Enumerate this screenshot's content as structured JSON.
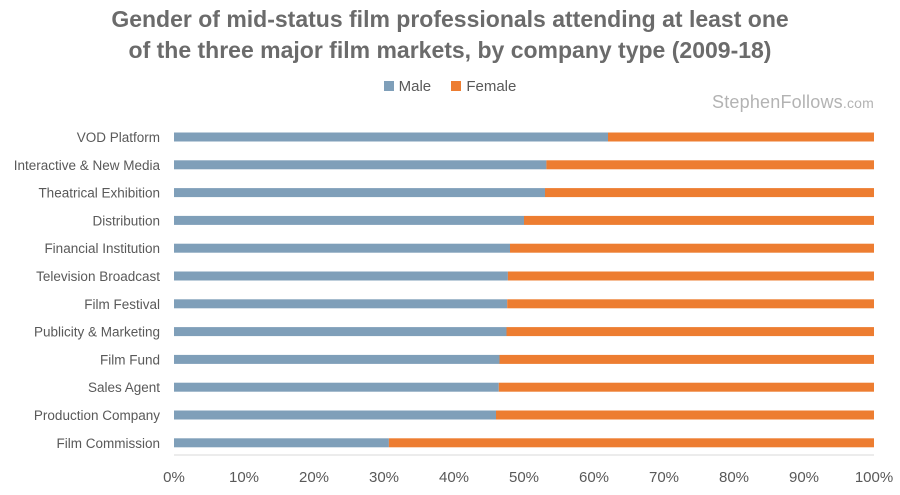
{
  "chart_data": {
    "type": "bar",
    "orientation": "horizontal",
    "stacked": true,
    "title_lines": [
      "Gender of mid-status film professionals attending at least one",
      "of the three major film markets, by company type (2009-18)"
    ],
    "categories": [
      "VOD Platform",
      "Interactive & New Media",
      "Theatrical Exhibition",
      "Distribution",
      "Financial Institution",
      "Television Broadcast",
      "Film Festival",
      "Publicity & Marketing",
      "Film Fund",
      "Sales Agent",
      "Production Company",
      "Film Commission"
    ],
    "series": [
      {
        "name": "Male",
        "color": "#7f9fb9",
        "values": [
          62,
          53.2,
          53,
          50,
          48,
          47.7,
          47.6,
          47.5,
          46.5,
          46.4,
          46,
          30.7
        ]
      },
      {
        "name": "Female",
        "color": "#ed7d31",
        "values": [
          38,
          46.8,
          47,
          50,
          52,
          52.3,
          52.4,
          52.5,
          53.5,
          53.6,
          54,
          69.3
        ]
      }
    ],
    "x_ticks": [
      "0%",
      "10%",
      "20%",
      "30%",
      "40%",
      "50%",
      "60%",
      "70%",
      "80%",
      "90%",
      "100%"
    ],
    "xlim": [
      0,
      100
    ],
    "legend_position": "top"
  },
  "watermark": {
    "name": "StephenFollows",
    "tld": ".com"
  }
}
